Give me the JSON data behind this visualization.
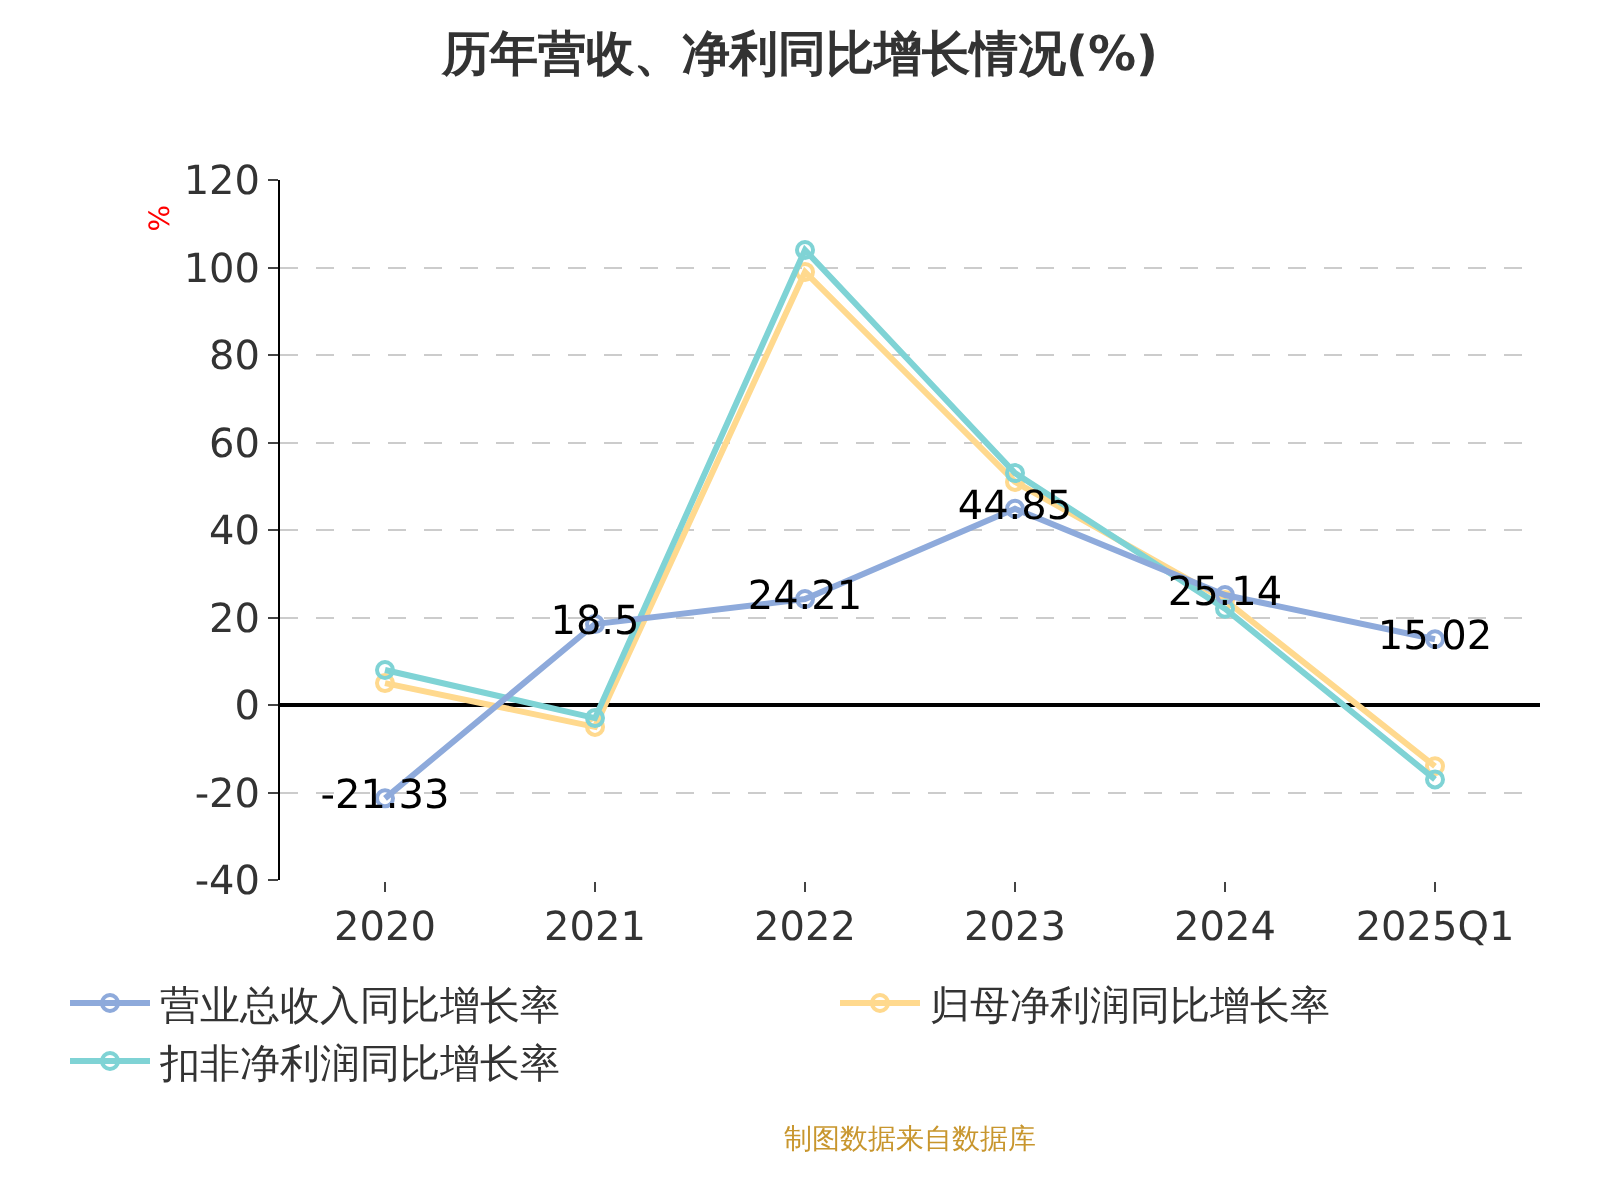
{
  "chart_data": {
    "type": "line",
    "title": "历年营收、净利同比增长情况(%)",
    "ylabel": "%",
    "categories": [
      "2020",
      "2021",
      "2022",
      "2023",
      "2024",
      "2025Q1"
    ],
    "series": [
      {
        "name": "营业总收入同比增长率",
        "color": "#8eaadb",
        "values": [
          -21.33,
          18.5,
          24.21,
          44.85,
          25.14,
          15.02
        ],
        "value_labels": [
          "-21.33",
          "18.5",
          "24.21",
          "44.85",
          "25.14",
          "15.02"
        ]
      },
      {
        "name": "归母净利润同比增长率",
        "color": "#ffd98e",
        "values": [
          5,
          -5,
          99,
          51,
          24,
          -14
        ]
      },
      {
        "name": "扣非净利润同比增长率",
        "color": "#7fd3d5",
        "values": [
          8,
          -3,
          104,
          53,
          22,
          -17
        ]
      }
    ],
    "ylim": [
      -40,
      120
    ],
    "yticks": [
      -40,
      -20,
      0,
      20,
      40,
      60,
      80,
      100,
      120
    ],
    "grid": "y",
    "legend": "bottom",
    "marker": "circle",
    "line_style": "solid",
    "annotations": [
      "制图数据来自数据库"
    ]
  }
}
